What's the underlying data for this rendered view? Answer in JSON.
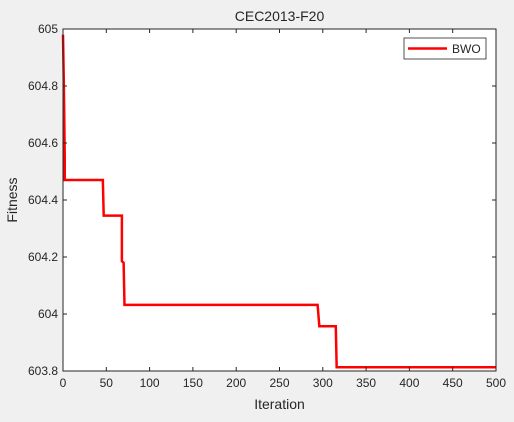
{
  "chart_data": {
    "type": "line",
    "title": "CEC2013-F20",
    "xlabel": "Iteration",
    "ylabel": "Fitness",
    "xlim": [
      0,
      500
    ],
    "ylim": [
      603.8,
      605
    ],
    "xticks": [
      0,
      50,
      100,
      150,
      200,
      250,
      300,
      350,
      400,
      450,
      500
    ],
    "yticks": [
      603.8,
      604,
      604.2,
      604.4,
      604.6,
      604.8,
      605
    ],
    "xtick_labels": [
      "0",
      "50",
      "100",
      "150",
      "200",
      "250",
      "300",
      "350",
      "400",
      "450",
      "500"
    ],
    "ytick_labels": [
      "603.8",
      "604",
      "604.2",
      "604.4",
      "604.6",
      "604.8",
      "605"
    ],
    "grid": false,
    "legend_position": "top-right",
    "series": [
      {
        "name": "BWO",
        "color": "#ff0000",
        "x": [
          0,
          1,
          2,
          2,
          46,
          47,
          68,
          68,
          70,
          71,
          294,
          296,
          315,
          316,
          500
        ],
        "y": [
          604.98,
          604.8,
          604.55,
          604.47,
          604.47,
          604.345,
          604.345,
          604.185,
          604.18,
          604.032,
          604.032,
          603.957,
          603.957,
          603.813,
          603.813
        ]
      }
    ]
  }
}
